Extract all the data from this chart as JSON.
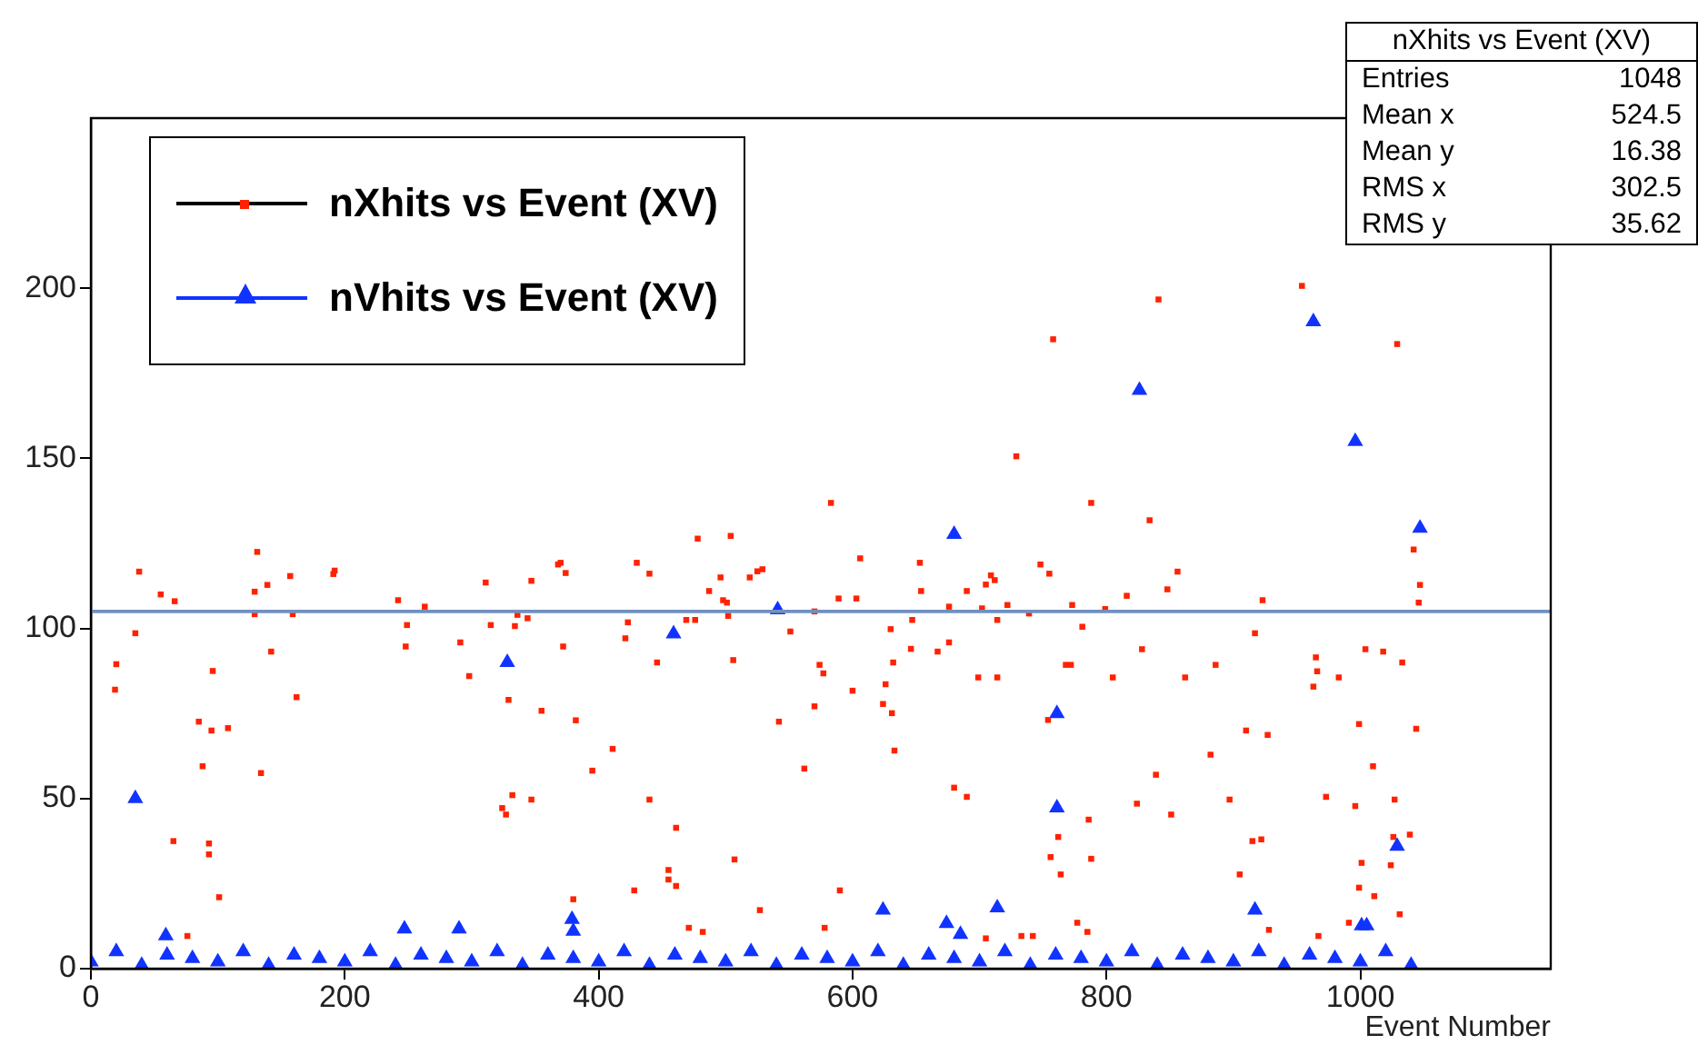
{
  "chart_data": {
    "type": "scatter",
    "xlabel": "Event Number",
    "xlim": [
      0,
      1150
    ],
    "xticks": [
      0,
      200,
      400,
      600,
      800,
      1000
    ],
    "ylim": [
      0,
      250
    ],
    "yticks": [
      0,
      50,
      100,
      150,
      200
    ],
    "grid": false,
    "legend": "top left",
    "ref_lines": [
      {
        "axis": "y",
        "value": 105,
        "color": "#7090c0"
      }
    ],
    "annotations": [
      "nXhits vs Event (XV)",
      "Entries 1048",
      "Mean x 524.5",
      "Mean y 16.38",
      "RMS x 302.5",
      "RMS y 35.62"
    ],
    "series": [
      {
        "name": "nXhits vs Event (XV)",
        "color": "#ff2200",
        "marker": "square",
        "x": [
          38,
          20,
          19,
          35,
          55,
          66,
          65,
          96,
          85,
          95,
          88,
          93,
          93,
          101,
          108,
          76,
          131,
          129,
          139,
          129,
          142,
          134,
          157,
          159,
          162,
          192,
          191,
          242,
          249,
          248,
          263,
          291,
          298,
          311,
          315,
          334,
          336,
          344,
          347,
          329,
          355,
          332,
          324,
          327,
          347,
          368,
          370,
          374,
          372,
          382,
          380,
          395,
          411,
          430,
          440,
          423,
          421,
          446,
          440,
          461,
          455,
          455,
          461,
          428,
          478,
          504,
          469,
          476,
          487,
          496,
          498,
          501,
          502,
          506,
          507,
          471,
          482,
          519,
          525,
          529,
          542,
          551,
          527,
          562,
          570,
          574,
          577,
          570,
          583,
          589,
          603,
          606,
          600,
          590,
          578,
          630,
          632,
          626,
          624,
          631,
          633,
          653,
          654,
          647,
          646,
          676,
          676,
          667,
          680,
          690,
          690,
          699,
          702,
          705,
          709,
          712,
          714,
          714,
          722,
          739,
          729,
          758,
          748,
          755,
          754,
          762,
          756,
          764,
          768,
          772,
          773,
          733,
          742,
          705,
          954,
          841,
          1029,
          788,
          834,
          856,
          848,
          816,
          799,
          781,
          828,
          805,
          862,
          886,
          923,
          917,
          965,
          966,
          963,
          983,
          1004,
          1018,
          1033,
          1042,
          1047,
          1046,
          1044,
          999,
          1010,
          1027,
          1039,
          1026,
          1024,
          1031,
          1011,
          999,
          1001,
          996,
          973,
          910,
          927,
          882,
          839,
          824,
          851,
          897,
          786,
          788,
          915,
          922,
          905,
          777,
          785,
          928,
          967,
          991
        ],
        "values": [
          116.7,
          89.5,
          82,
          98.6,
          110,
          108,
          37.5,
          87.5,
          72.6,
          70,
          59.5,
          36.8,
          33.6,
          21,
          70.7,
          9.6,
          122.5,
          110.8,
          112.8,
          104.2,
          93.2,
          57.5,
          115.4,
          104.2,
          79.8,
          117,
          116,
          108.3,
          101,
          94.7,
          106.4,
          95.9,
          86,
          113.5,
          101,
          100.7,
          104,
          103,
          114,
          79,
          75.8,
          51,
          47.2,
          45.3,
          49.7,
          118.8,
          119.3,
          116.3,
          94.7,
          73,
          20.4,
          58.2,
          64.6,
          119.3,
          116.1,
          101.8,
          97.1,
          90,
          49.7,
          41.4,
          29,
          26.2,
          24.3,
          23,
          126.4,
          127.2,
          102.5,
          102.5,
          111,
          115,
          108.3,
          107.6,
          103.7,
          90.7,
          32.1,
          12,
          10.8,
          115,
          116.8,
          117.4,
          72.6,
          99.1,
          17.2,
          58.8,
          77.1,
          89.3,
          86.8,
          105,
          136.9,
          108.8,
          108.8,
          120.6,
          81.7,
          23,
          12,
          99.8,
          90,
          83.6,
          77.8,
          75.1,
          64.1,
          119.3,
          111,
          102.5,
          94,
          106.4,
          95.9,
          93.2,
          53.2,
          50.5,
          111,
          85.6,
          105.9,
          112.9,
          115.6,
          114.2,
          102.5,
          85.6,
          106.9,
          104.4,
          150.6,
          185,
          118.8,
          116.1,
          73.1,
          38.7,
          32.8,
          27.7,
          89.3,
          89.3,
          106.9,
          9.6,
          9.6,
          8.9,
          200.7,
          196.7,
          183.6,
          136.9,
          131.8,
          116.7,
          111.5,
          109.6,
          105.7,
          100.5,
          93.9,
          85.6,
          85.6,
          89.3,
          108.3,
          98.6,
          91.5,
          87.4,
          82.9,
          85.6,
          93.9,
          93.2,
          90,
          123.2,
          112.8,
          107.6,
          70.5,
          71.9,
          59.5,
          49.7,
          39.4,
          38.7,
          30.4,
          16,
          21.3,
          23.8,
          31.1,
          47.8,
          50.5,
          70,
          68.7,
          62.9,
          57,
          48.5,
          45.3,
          49.7,
          43.8,
          32.3,
          37.5,
          38,
          27.7,
          13.5,
          10.8,
          11.4,
          9.6,
          13.5
        ]
      },
      {
        "name": "nVhits vs Event (XV)",
        "color": "#1133ff",
        "marker": "triangle",
        "x": [
          35,
          328,
          379,
          380,
          247,
          290,
          59,
          459,
          541,
          680,
          761,
          761,
          624,
          674,
          714,
          685,
          963,
          826,
          996,
          1047,
          1029,
          917,
          1001,
          1005,
          0,
          20,
          40,
          60,
          80,
          100,
          120,
          140,
          160,
          180,
          200,
          220,
          240,
          260,
          280,
          300,
          320,
          340,
          360,
          380,
          400,
          420,
          440,
          460,
          480,
          500,
          520,
          540,
          560,
          580,
          600,
          620,
          640,
          660,
          680,
          700,
          720,
          740,
          760,
          780,
          800,
          820,
          840,
          860,
          880,
          900,
          920,
          940,
          960,
          980,
          1000,
          1020,
          1040
        ],
        "values": [
          50,
          90,
          14.5,
          11,
          11.7,
          11.7,
          9.7,
          98.4,
          105.5,
          127.7,
          75,
          47.3,
          17.2,
          13.3,
          17.9,
          10.1,
          190.2,
          170,
          155,
          129.5,
          36,
          17.2,
          12.6,
          12.6,
          2,
          5,
          1,
          4,
          3,
          2,
          5,
          1,
          4,
          3,
          2,
          5,
          1,
          4,
          3,
          2,
          5,
          1,
          4,
          3,
          2,
          5,
          1,
          4,
          3,
          2,
          5,
          1,
          4,
          3,
          2,
          5,
          1,
          4,
          3,
          2,
          5,
          1,
          4,
          3,
          2,
          5,
          1,
          4,
          3,
          2,
          5,
          1,
          4,
          3,
          2,
          5,
          1
        ]
      }
    ]
  }
}
